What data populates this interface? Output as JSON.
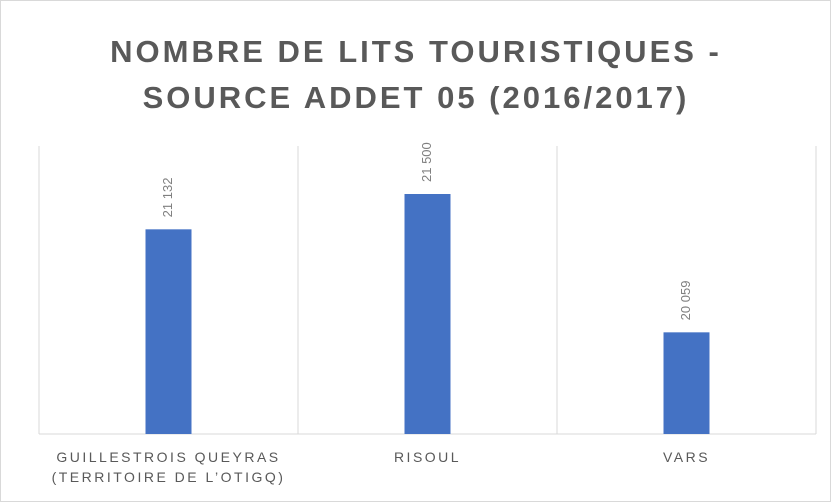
{
  "chart_data": {
    "type": "bar",
    "title": "NOMBRE DE LITS TOURISTIQUES - SOURCE ADDET 05 (2016/2017)",
    "categories": [
      "GUILLESTROIS QUEYRAS (TERRITOIRE DE L’OTIGQ)",
      "RISOUL",
      "VARS"
    ],
    "values": [
      21132,
      21500,
      20059
    ],
    "value_labels": [
      "21 132",
      "21 500",
      "20 059"
    ],
    "color": "#4472c4",
    "ylim": [
      19000,
      22000
    ]
  }
}
